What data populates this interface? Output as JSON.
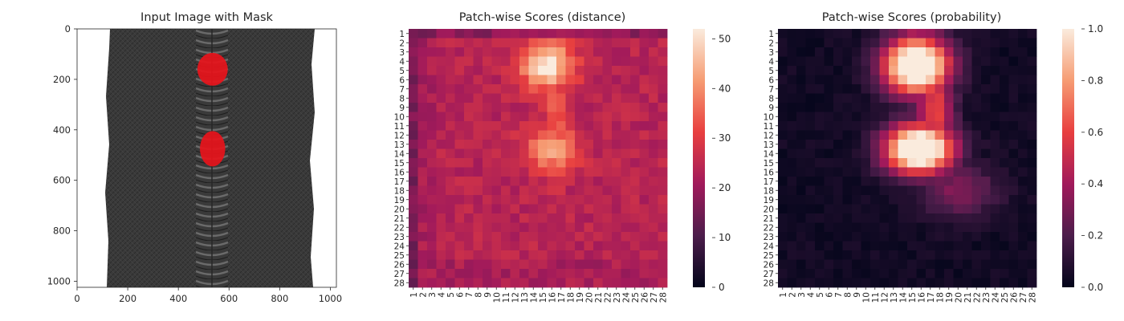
{
  "colors": {
    "background": "#ffffff",
    "axis": "#262626",
    "zipper_fabric": "#3a3a3a",
    "zipper_teeth": "#5c5c5c",
    "mask": "#e8141b",
    "cmap_stops": [
      "#03051a",
      "#4c1d4b",
      "#a11a5b",
      "#e83f3f",
      "#f69c73",
      "#faebdd"
    ]
  },
  "chart_data": [
    {
      "type": "image",
      "title": "Input Image with Mask",
      "xlim": [
        0,
        1024
      ],
      "ylim": [
        1024,
        0
      ],
      "x_ticks": [
        0,
        200,
        400,
        600,
        800,
        1000
      ],
      "y_ticks": [
        0,
        200,
        400,
        600,
        800,
        1000
      ],
      "content": "zipper with red mask regions",
      "mask_regions": [
        {
          "center_x": 535,
          "center_y": 160,
          "radius_x": 60,
          "radius_y": 65
        },
        {
          "center_x": 535,
          "center_y": 475,
          "radius_x": 50,
          "radius_y": 70
        }
      ]
    },
    {
      "type": "heatmap",
      "title": "Patch-wise Scores (distance)",
      "rows": 28,
      "cols": 28,
      "row_labels": [
        "1",
        "2",
        "3",
        "4",
        "5",
        "6",
        "7",
        "8",
        "9",
        "10",
        "11",
        "12",
        "13",
        "14",
        "15",
        "16",
        "17",
        "18",
        "19",
        "20",
        "21",
        "22",
        "23",
        "24",
        "25",
        "26",
        "27",
        "28"
      ],
      "col_labels": [
        "1",
        "2",
        "3",
        "4",
        "5",
        "6",
        "7",
        "8",
        "9",
        "10",
        "11",
        "12",
        "13",
        "14",
        "15",
        "16",
        "17",
        "18",
        "19",
        "20",
        "21",
        "22",
        "23",
        "24",
        "25",
        "26",
        "27",
        "28"
      ],
      "colorbar": {
        "min": 0,
        "max": 52,
        "ticks": [
          0,
          10,
          20,
          30,
          40,
          50
        ]
      },
      "baseline": 24,
      "hotspots": [
        {
          "row": 4.5,
          "col": 15.5,
          "peak": 52,
          "sigma_r": 1.8,
          "sigma_c": 2.0
        },
        {
          "row": 13.5,
          "col": 16.0,
          "peak": 43,
          "sigma_r": 1.8,
          "sigma_c": 1.9
        },
        {
          "row": 9.5,
          "col": 16.5,
          "peak": 35,
          "sigma_r": 4.5,
          "sigma_c": 1.0
        }
      ]
    },
    {
      "type": "heatmap",
      "title": "Patch-wise Scores (probability)",
      "rows": 28,
      "cols": 28,
      "row_labels": [
        "1",
        "2",
        "3",
        "4",
        "5",
        "6",
        "7",
        "8",
        "9",
        "10",
        "11",
        "12",
        "13",
        "14",
        "15",
        "16",
        "17",
        "18",
        "19",
        "20",
        "21",
        "22",
        "23",
        "24",
        "25",
        "26",
        "27",
        "28"
      ],
      "col_labels": [
        "1",
        "2",
        "3",
        "4",
        "5",
        "6",
        "7",
        "8",
        "9",
        "10",
        "11",
        "12",
        "13",
        "14",
        "15",
        "16",
        "17",
        "18",
        "19",
        "20",
        "21",
        "22",
        "23",
        "24",
        "25",
        "26",
        "27",
        "28"
      ],
      "colorbar": {
        "min": 0,
        "max": 1,
        "ticks": [
          "0.0",
          "0.2",
          "0.4",
          "0.6",
          "0.8",
          "1.0"
        ]
      },
      "baseline": 0.03,
      "hotspots": [
        {
          "row": 4.5,
          "col": 15.5,
          "peak": 1.0,
          "sigma_r": 2.2,
          "sigma_c": 2.5
        },
        {
          "row": 13.5,
          "col": 15.8,
          "peak": 1.0,
          "sigma_r": 1.9,
          "sigma_c": 2.6
        },
        {
          "row": 9.5,
          "col": 17.5,
          "peak": 0.45,
          "sigma_r": 5.0,
          "sigma_c": 1.5
        },
        {
          "row": 18.0,
          "col": 20.0,
          "peak": 0.25,
          "sigma_r": 2.0,
          "sigma_c": 3.0
        }
      ]
    }
  ]
}
